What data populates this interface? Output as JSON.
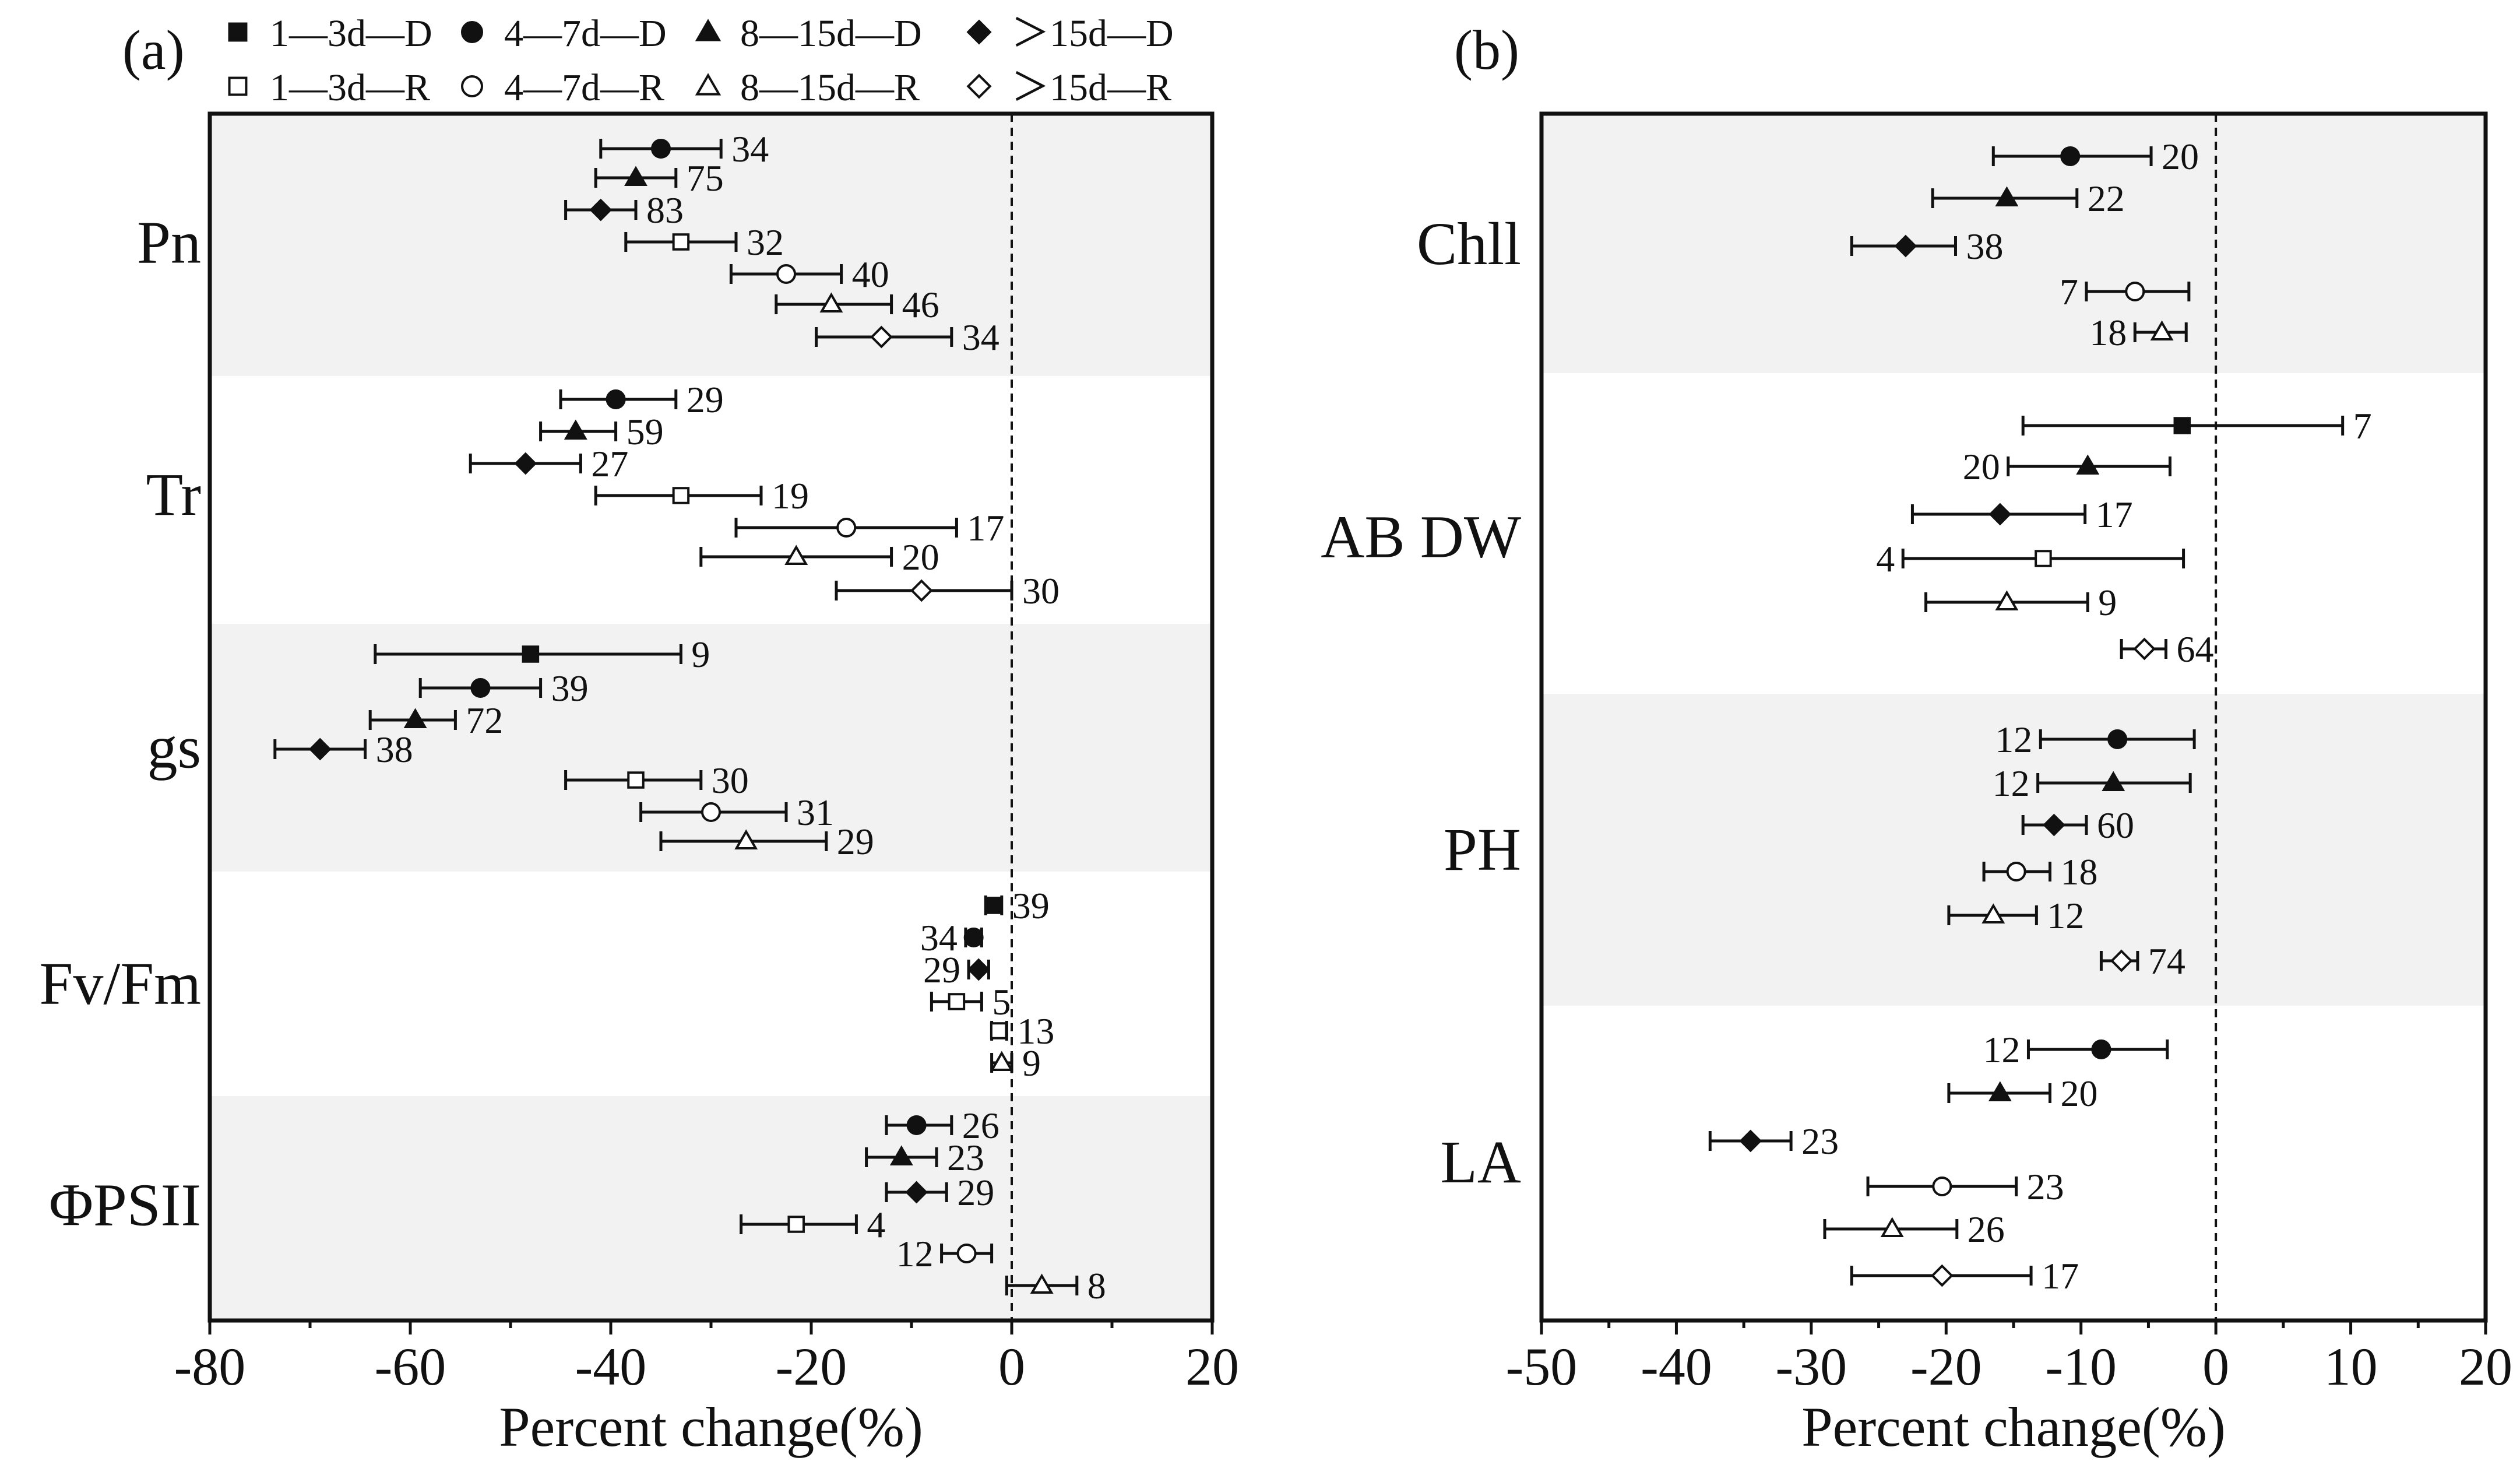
{
  "chart_data": [
    {
      "type": "scatter",
      "subtype": "forest-plot",
      "panel_label": "(a)",
      "xlabel": "Percent change(%)",
      "xlim": [
        -80,
        20
      ],
      "xticks": [
        -80,
        -60,
        -40,
        -20,
        0,
        20
      ],
      "xtick_labels": [
        "-80",
        "-60",
        "-40",
        "-20",
        "0",
        "20"
      ],
      "reference_line": 0,
      "groups": [
        {
          "label": "Pn",
          "shaded": true,
          "rows": [
            {
              "series": "4-7d-D",
              "mean": -35,
              "lo": -41,
              "hi": -29,
              "n": "34"
            },
            {
              "series": "8-15d-D",
              "mean": -37.5,
              "lo": -41.5,
              "hi": -33.5,
              "n": "75"
            },
            {
              "series": ">15d-D",
              "mean": -41,
              "lo": -44.5,
              "hi": -37.5,
              "n": "83"
            },
            {
              "series": "1-3d-R",
              "mean": -33,
              "lo": -38.5,
              "hi": -27.5,
              "n": "32"
            },
            {
              "series": "4-7d-R",
              "mean": -22.5,
              "lo": -28,
              "hi": -17,
              "n": "40"
            },
            {
              "series": "8-15d-R",
              "mean": -18,
              "lo": -23.5,
              "hi": -12,
              "n": "46"
            },
            {
              "series": ">15d-R",
              "mean": -13,
              "lo": -19.5,
              "hi": -6,
              "n": "34"
            }
          ]
        },
        {
          "label": "Tr",
          "shaded": false,
          "rows": [
            {
              "series": "4-7d-D",
              "mean": -39.5,
              "lo": -45,
              "hi": -33.5,
              "n": "29"
            },
            {
              "series": "8-15d-D",
              "mean": -43.5,
              "lo": -47,
              "hi": -39.5,
              "n": "59"
            },
            {
              "series": ">15d-D",
              "mean": -48.5,
              "lo": -54,
              "hi": -43,
              "n": "27"
            },
            {
              "series": "1-3d-R",
              "mean": -33,
              "lo": -41.5,
              "hi": -25,
              "n": "19"
            },
            {
              "series": "4-7d-R",
              "mean": -16.5,
              "lo": -27.5,
              "hi": -5.5,
              "n": "17"
            },
            {
              "series": "8-15d-R",
              "mean": -21.5,
              "lo": -31,
              "hi": -12,
              "n": "20"
            },
            {
              "series": ">15d-R",
              "mean": -9,
              "lo": -17.5,
              "hi": 0,
              "n": "30"
            }
          ]
        },
        {
          "label": "gs",
          "shaded": true,
          "rows": [
            {
              "series": "1-3d-D",
              "mean": -48,
              "lo": -63.5,
              "hi": -33,
              "n": "9"
            },
            {
              "series": "4-7d-D",
              "mean": -53,
              "lo": -59,
              "hi": -47,
              "n": "39"
            },
            {
              "series": "8-15d-D",
              "mean": -59.5,
              "lo": -64,
              "hi": -55.5,
              "n": "72"
            },
            {
              "series": ">15d-D",
              "mean": -69,
              "lo": -73.5,
              "hi": -64.5,
              "n": "38"
            },
            {
              "series": "1-3d-R",
              "mean": -37.5,
              "lo": -44.5,
              "hi": -31,
              "n": "30"
            },
            {
              "series": "4-7d-R",
              "mean": -30,
              "lo": -37,
              "hi": -22.5,
              "n": "31"
            },
            {
              "series": "8-15d-R",
              "mean": -26.5,
              "lo": -35,
              "hi": -18.5,
              "n": "29"
            }
          ]
        },
        {
          "label": "Fv/Fm",
          "shaded": false,
          "rows": [
            {
              "series": "1-3d-D",
              "mean": -1.8,
              "lo": -2.6,
              "hi": -1,
              "n": "39"
            },
            {
              "series": "4-7d-D",
              "mean": -3.8,
              "lo": -4.6,
              "hi": -3,
              "n": "34"
            },
            {
              "series": ">15d-D",
              "mean": -3.3,
              "lo": -4.3,
              "hi": -2.3,
              "n": "29"
            },
            {
              "series": "1-3d-R",
              "mean": -5.5,
              "lo": -8,
              "hi": -3,
              "n": "5"
            },
            {
              "series": "1-3d-R",
              "mean": -1.3,
              "lo": -2,
              "hi": -0.5,
              "n": "13"
            },
            {
              "series": "8-15d-R",
              "mean": -1,
              "lo": -2,
              "hi": 0,
              "n": "9"
            }
          ]
        },
        {
          "label": "ΦPSII",
          "shaded": true,
          "rows": [
            {
              "series": "4-7d-D",
              "mean": -9.5,
              "lo": -12.5,
              "hi": -6,
              "n": "26"
            },
            {
              "series": "8-15d-D",
              "mean": -11,
              "lo": -14.5,
              "hi": -7.5,
              "n": "23"
            },
            {
              "series": ">15d-D",
              "mean": -9.5,
              "lo": -12.5,
              "hi": -6.5,
              "n": "29"
            },
            {
              "series": "1-3d-R",
              "mean": -21.5,
              "lo": -27,
              "hi": -15.5,
              "n": "4"
            },
            {
              "series": "4-7d-R",
              "mean": -4.5,
              "lo": -7,
              "hi": -2,
              "n": "12"
            },
            {
              "series": "8-15d-R",
              "mean": 3,
              "lo": -0.5,
              "hi": 6.5,
              "n": "8"
            }
          ]
        }
      ]
    },
    {
      "type": "scatter",
      "subtype": "forest-plot",
      "panel_label": "(b)",
      "xlabel": "Percent change(%)",
      "xlim": [
        -50,
        20
      ],
      "xticks": [
        -50,
        -40,
        -30,
        -20,
        -10,
        0,
        10,
        20
      ],
      "xtick_labels": [
        "-50",
        "-40",
        "-30",
        "-20",
        "-10",
        "0",
        "10",
        "20"
      ],
      "reference_line": 0,
      "groups": [
        {
          "label": "Chll",
          "shaded": true,
          "rows": [
            {
              "series": "4-7d-D",
              "mean": -10.8,
              "lo": -16.5,
              "hi": -4.8,
              "n": "20"
            },
            {
              "series": "8-15d-D",
              "mean": -15.5,
              "lo": -21,
              "hi": -10.3,
              "n": "22"
            },
            {
              "series": ">15d-D",
              "mean": -23,
              "lo": -27,
              "hi": -19.3,
              "n": "38"
            },
            {
              "series": "4-7d-R",
              "mean": -6,
              "lo": -9.6,
              "hi": -2,
              "n": "7"
            },
            {
              "series": "8-15d-R",
              "mean": -4,
              "lo": -6,
              "hi": -2.2,
              "n": "18"
            }
          ]
        },
        {
          "label": "AB DW",
          "shaded": false,
          "rows": [
            {
              "series": "1-3d-D",
              "mean": -2.5,
              "lo": -14.3,
              "hi": 9.4,
              "n": "7"
            },
            {
              "series": "8-15d-D",
              "mean": -9.5,
              "lo": -15.4,
              "hi": -3.4,
              "n": "20"
            },
            {
              "series": ">15d-D",
              "mean": -16,
              "lo": -22.5,
              "hi": -9.7,
              "n": "17"
            },
            {
              "series": "1-3d-R",
              "mean": -12.8,
              "lo": -23.2,
              "hi": -2.4,
              "n": "4"
            },
            {
              "series": "8-15d-R",
              "mean": -15.5,
              "lo": -21.5,
              "hi": -9.5,
              "n": "9"
            },
            {
              "series": ">15d-R",
              "mean": -5.3,
              "lo": -7,
              "hi": -3.7,
              "n": "64"
            }
          ]
        },
        {
          "label": "PH",
          "shaded": true,
          "rows": [
            {
              "series": "4-7d-D",
              "mean": -7.3,
              "lo": -13,
              "hi": -1.6,
              "n": "12"
            },
            {
              "series": "8-15d-D",
              "mean": -7.6,
              "lo": -13.2,
              "hi": -1.9,
              "n": "12"
            },
            {
              "series": ">15d-D",
              "mean": -12,
              "lo": -14.3,
              "hi": -9.6,
              "n": "60"
            },
            {
              "series": "4-7d-R",
              "mean": -14.8,
              "lo": -17.2,
              "hi": -12.3,
              "n": "18"
            },
            {
              "series": "8-15d-R",
              "mean": -16.5,
              "lo": -19.8,
              "hi": -13.3,
              "n": "12"
            },
            {
              "series": ">15d-R",
              "mean": -7,
              "lo": -8.5,
              "hi": -5.8,
              "n": "74"
            }
          ]
        },
        {
          "label": "LA",
          "shaded": false,
          "rows": [
            {
              "series": "4-7d-D",
              "mean": -8.5,
              "lo": -13.9,
              "hi": -3.6,
              "n": "12"
            },
            {
              "series": "8-15d-D",
              "mean": -16,
              "lo": -19.8,
              "hi": -12.3,
              "n": "20"
            },
            {
              "series": ">15d-D",
              "mean": -34.5,
              "lo": -37.5,
              "hi": -31.5,
              "n": "23"
            },
            {
              "series": "4-7d-R",
              "mean": -20.3,
              "lo": -25.8,
              "hi": -14.8,
              "n": "23"
            },
            {
              "series": "8-15d-R",
              "mean": -24,
              "lo": -29,
              "hi": -19.2,
              "n": "26"
            },
            {
              "series": ">15d-R",
              "mean": -20.3,
              "lo": -27,
              "hi": -13.7,
              "n": "17"
            }
          ]
        }
      ]
    }
  ],
  "legend": [
    {
      "key": "1-3d-D",
      "label": "1—3d—D",
      "marker": "square",
      "filled": true
    },
    {
      "key": "4-7d-D",
      "label": "4—7d—D",
      "marker": "circle",
      "filled": true
    },
    {
      "key": "8-15d-D",
      "label": "8—15d—D",
      "marker": "triangle",
      "filled": true
    },
    {
      "key": ">15d-D",
      "label": "＞15d—D",
      "marker": "diamond",
      "filled": true
    },
    {
      "key": "1-3d-R",
      "label": "1—3d—R",
      "marker": "square",
      "filled": false
    },
    {
      "key": "4-7d-R",
      "label": "4—7d—R",
      "marker": "circle",
      "filled": false
    },
    {
      "key": "8-15d-R",
      "label": "8—15d—R",
      "marker": "triangle",
      "filled": false
    },
    {
      "key": ">15d-R",
      "label": "＞15d—R",
      "marker": "diamond",
      "filled": false
    }
  ],
  "colors": {
    "ink": "#111111",
    "band": "#f2f2f2",
    "background": "#ffffff"
  }
}
